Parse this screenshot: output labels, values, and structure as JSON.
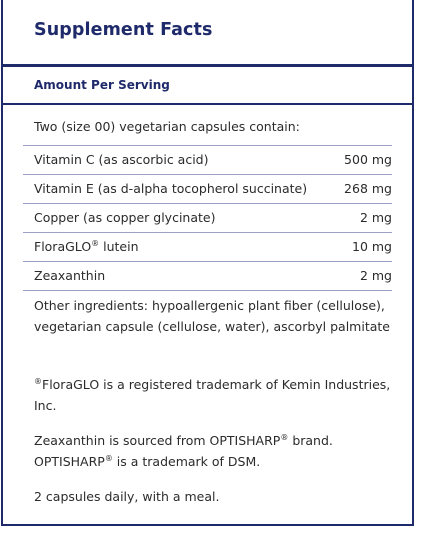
{
  "title": "Supplement Facts",
  "amount_per_serving": "Amount Per Serving",
  "serving_intro": "Two (size 00) vegetarian capsules contain:",
  "nutrients": [
    {
      "name": "Vitamin C (as ascorbic acid)",
      "amount": "500 mg"
    },
    {
      "name": "Vitamin E (as d-alpha tocopherol succinate)",
      "amount": "268 mg"
    },
    {
      "name": "Copper (as copper glycinate)",
      "amount": "2 mg"
    },
    {
      "name_main": "FloraGLO",
      "name_sup": "®",
      "name_rest": " lutein",
      "amount": "10 mg"
    },
    {
      "name": "Zeaxanthin",
      "amount": "2 mg"
    }
  ],
  "other_ingredients": "Other ingredients: hypoallergenic plant fiber (cellulose), vegetarian capsule (cellulose, water), ascorbyl palmitate",
  "floraglo_note": {
    "sup": "®",
    "text": "FloraGLO is a registered trademark of Kemin Industries, Inc."
  },
  "zeaxanthin_note": {
    "part1": "Zeaxanthin is sourced from OPTISHARP",
    "sup1": "®",
    "part2": " brand. OPTISHARP",
    "sup2": "®",
    "part3": " is a trademark of DSM."
  },
  "directions": "2 capsules daily, with a meal."
}
